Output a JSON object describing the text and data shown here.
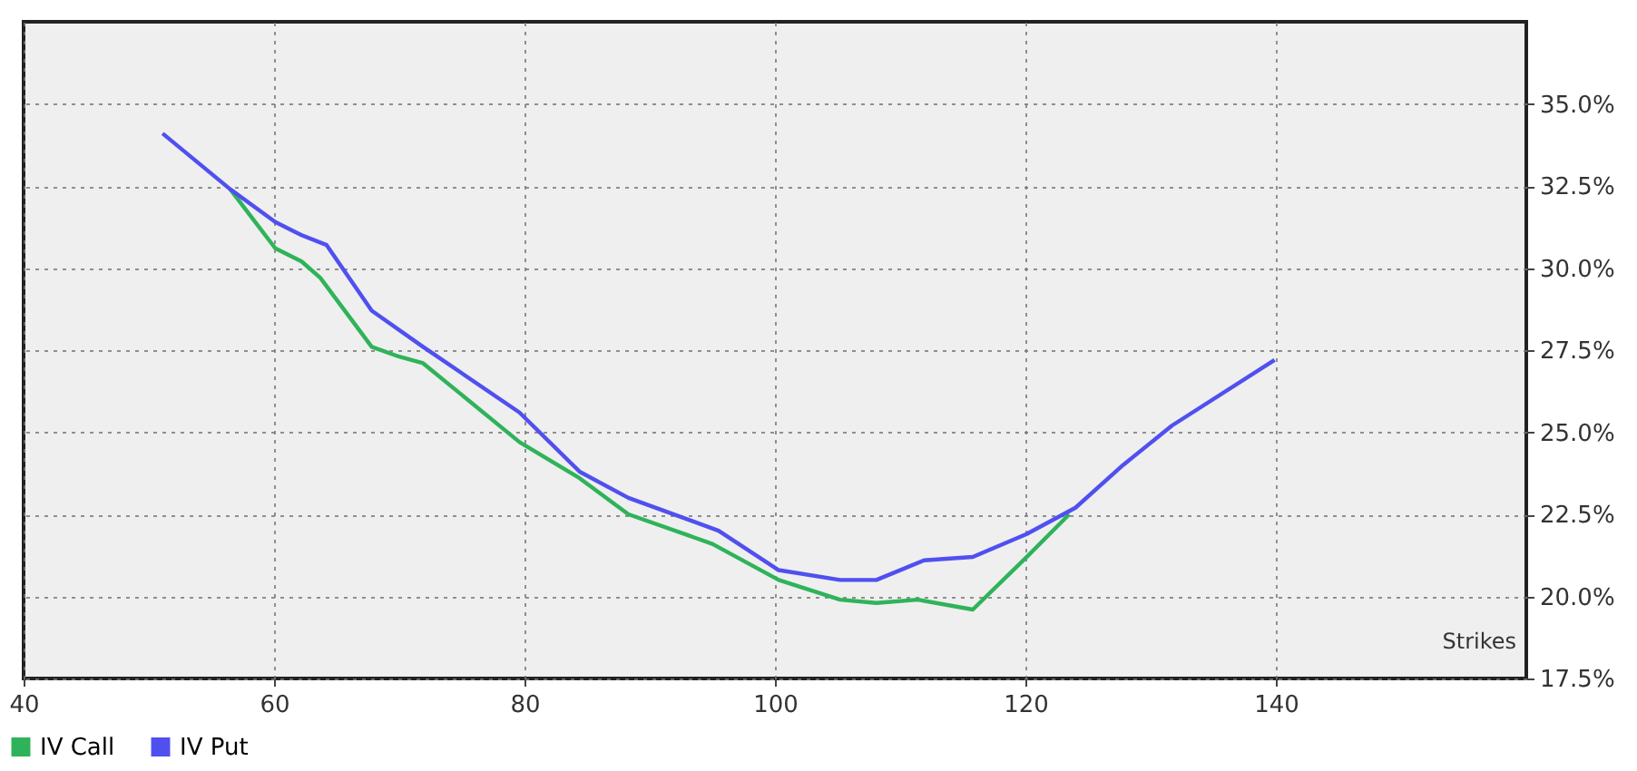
{
  "chart_data": {
    "type": "line",
    "xlabel": "Strikes",
    "xlim": [
      40,
      160
    ],
    "xticks": [
      40,
      60,
      80,
      100,
      120,
      140
    ],
    "ylim": [
      17.5,
      37.5
    ],
    "yticks": [
      {
        "value": 17.5,
        "label": "17.5%"
      },
      {
        "value": 20,
        "label": "20.0%"
      },
      {
        "value": 22.5,
        "label": "22.5%"
      },
      {
        "value": 25,
        "label": "25.0%"
      },
      {
        "value": 27.5,
        "label": "27.5%"
      },
      {
        "value": 30,
        "label": "30.0%"
      },
      {
        "value": 32.5,
        "label": "32.5%"
      },
      {
        "value": 35,
        "label": "35.0%"
      }
    ],
    "grid": true,
    "legend": "bottom left",
    "line_style": "solid",
    "series": [
      {
        "name": "IV Call",
        "color": "#2fb35a",
        "x": [
          56.5,
          60.1,
          62.2,
          63.7,
          67.8,
          70.0,
          71.9,
          79.6,
          84.4,
          88.3,
          95.0,
          100.3,
          105.2,
          108.1,
          111.4,
          115.8,
          120.1,
          123.5
        ],
        "values": [
          32.4,
          30.6,
          30.2,
          29.7,
          27.6,
          27.3,
          27.1,
          24.7,
          23.6,
          22.5,
          21.6,
          20.5,
          19.9,
          19.8,
          19.9,
          19.6,
          21.2,
          22.5
        ]
      },
      {
        "name": "IV Put",
        "color": "#5050f0",
        "x": [
          51.1,
          56.5,
          60.1,
          62.2,
          64.2,
          67.8,
          71.9,
          79.6,
          84.4,
          88.3,
          95.5,
          100.3,
          105.2,
          108.1,
          111.9,
          115.8,
          120.1,
          124.0,
          127.8,
          131.7,
          139.9
        ],
        "values": [
          34.1,
          32.4,
          31.4,
          31.0,
          30.7,
          28.7,
          27.6,
          25.6,
          23.8,
          23.0,
          22.0,
          20.8,
          20.5,
          20.5,
          21.1,
          21.2,
          21.9,
          22.7,
          24.0,
          25.2,
          27.2
        ]
      }
    ]
  }
}
